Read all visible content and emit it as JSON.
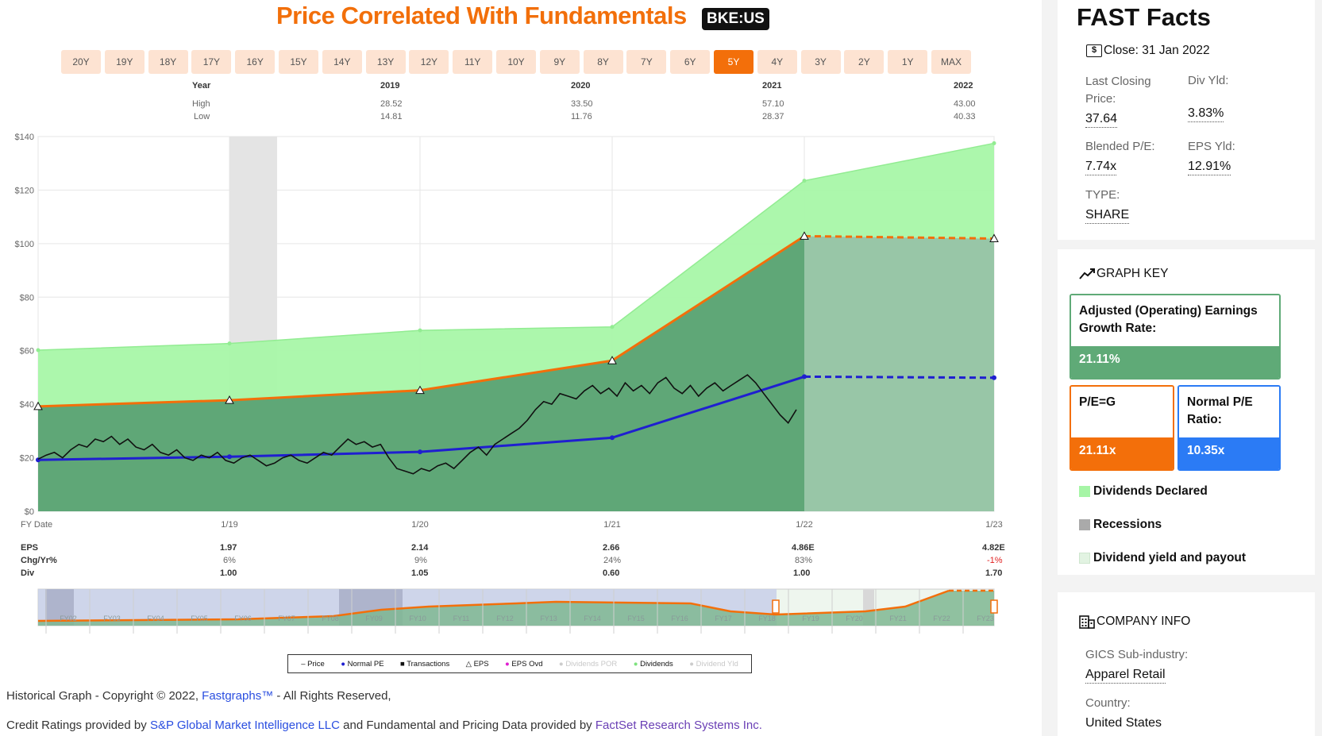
{
  "header": {
    "title": "Price Correlated With Fundamentals",
    "ticker": "BKE:US"
  },
  "ranges": [
    {
      "label": "20Y",
      "active": false
    },
    {
      "label": "19Y",
      "active": false
    },
    {
      "label": "18Y",
      "active": false
    },
    {
      "label": "17Y",
      "active": false
    },
    {
      "label": "16Y",
      "active": false
    },
    {
      "label": "15Y",
      "active": false
    },
    {
      "label": "14Y",
      "active": false
    },
    {
      "label": "13Y",
      "active": false
    },
    {
      "label": "12Y",
      "active": false
    },
    {
      "label": "11Y",
      "active": false
    },
    {
      "label": "10Y",
      "active": false
    },
    {
      "label": "9Y",
      "active": false
    },
    {
      "label": "8Y",
      "active": false
    },
    {
      "label": "7Y",
      "active": false
    },
    {
      "label": "6Y",
      "active": false
    },
    {
      "label": "5Y",
      "active": true
    },
    {
      "label": "4Y",
      "active": false
    },
    {
      "label": "3Y",
      "active": false
    },
    {
      "label": "2Y",
      "active": false
    },
    {
      "label": "1Y",
      "active": false
    },
    {
      "label": "MAX",
      "active": false
    }
  ],
  "year_table": {
    "year_label": "Year",
    "high_label": "High",
    "low_label": "Low",
    "columns": [
      {
        "year": "2019",
        "high": "28.52",
        "low": "14.81"
      },
      {
        "year": "2020",
        "high": "33.50",
        "low": "11.76"
      },
      {
        "year": "2021",
        "high": "57.10",
        "low": "28.37"
      },
      {
        "year": "2022",
        "high": "43.00",
        "low": "40.33"
      }
    ]
  },
  "chart_data": {
    "type": "area",
    "y_ticks": [
      "$0",
      "$20",
      "$40",
      "$60",
      "$80",
      "$100",
      "$120",
      "$140"
    ],
    "ylim": [
      0,
      140
    ],
    "x_labels": [
      "1/19",
      "1/20",
      "1/21",
      "1/22",
      "1/23"
    ],
    "x_axis_label": "FY Date",
    "x": [
      0,
      1,
      2,
      3,
      4,
      5
    ],
    "series": [
      {
        "name": "Dividends",
        "values": [
          60.2,
          62.7,
          67.6,
          68.9,
          123.5,
          137.5
        ]
      },
      {
        "name": "EPS",
        "values": [
          39.2,
          41.5,
          45.2,
          56.3,
          102.8,
          101.9
        ]
      },
      {
        "name": "Normal PE",
        "values": [
          19.2,
          20.4,
          22.2,
          27.5,
          50.3,
          49.9
        ]
      }
    ],
    "recession": {
      "from": 1.0,
      "to": 1.25
    },
    "estimate_start": 4,
    "price": [
      19.5,
      21,
      22,
      20,
      23,
      25,
      24,
      27,
      26,
      28,
      25,
      27,
      24,
      23,
      25,
      22,
      21,
      23,
      20,
      19,
      21,
      20,
      22,
      19,
      18,
      20,
      21,
      19,
      17,
      18,
      20,
      21,
      19,
      18,
      20,
      22,
      21,
      24,
      27,
      25,
      26,
      24,
      25,
      20,
      16,
      15,
      14,
      16,
      15,
      17,
      18,
      16,
      19,
      22,
      24,
      21,
      25,
      27,
      29,
      31,
      34,
      38,
      41,
      40,
      44,
      43,
      42,
      45,
      47,
      44,
      46,
      43,
      48,
      45,
      47,
      44,
      48,
      50,
      46,
      44,
      47,
      43,
      46,
      48,
      45,
      47,
      49,
      51,
      48,
      44,
      40,
      36,
      33,
      38
    ]
  },
  "bottom_table": {
    "eps_label": "EPS",
    "chg_label": "Chg/Yr%",
    "div_label": "Div",
    "columns": [
      {
        "eps": "1.97",
        "chg": "6%",
        "div": "1.00",
        "neg": false
      },
      {
        "eps": "2.14",
        "chg": "9%",
        "div": "1.05",
        "neg": false
      },
      {
        "eps": "2.66",
        "chg": "24%",
        "div": "0.60",
        "neg": false
      },
      {
        "eps": "4.86E",
        "chg": "83%",
        "div": "1.00",
        "neg": false
      },
      {
        "eps": "4.82E",
        "chg": "-1%",
        "div": "1.70",
        "neg": true
      }
    ]
  },
  "mini_labels": [
    "FY02",
    "FY03",
    "FY04",
    "FY05",
    "FY06",
    "FY07",
    "FY08",
    "FY09",
    "FY10",
    "FY11",
    "FY12",
    "FY13",
    "FY14",
    "FY15",
    "FY16",
    "FY17",
    "FY18",
    "FY19",
    "FY20",
    "FY21",
    "FY22",
    "FY23"
  ],
  "legend": [
    {
      "label": "Price",
      "mark": "–",
      "color": "#111"
    },
    {
      "label": "Normal PE",
      "mark": "●",
      "color": "#1f1fd0"
    },
    {
      "label": "Transactions",
      "mark": "■",
      "color": "#111"
    },
    {
      "label": "EPS",
      "mark": "△",
      "color": "#111"
    },
    {
      "label": "EPS Ovd",
      "mark": "●",
      "color": "#e020d0"
    },
    {
      "label": "Dividends POR",
      "mark": "●",
      "color": "#cccccc",
      "muted": true
    },
    {
      "label": "Dividends",
      "mark": "●",
      "color": "#7ee27e"
    },
    {
      "label": "Dividend Yld",
      "mark": "●",
      "color": "#cccccc",
      "muted": true
    }
  ],
  "footer": {
    "line1_a": "Historical Graph - Copyright © 2022, ",
    "line1_link": "Fastgraphs™",
    "line1_b": " - All Rights Reserved,",
    "line2_a": "Credit Ratings provided by ",
    "line2_link1": "S&P Global Market Intelligence LLC",
    "line2_b": " and Fundamental and Pricing Data provided by ",
    "line2_link2": "FactSet Research Systems Inc."
  },
  "facts": {
    "title": "FAST Facts",
    "close": "Close: 31 Jan 2022",
    "last_close_label": "Last Closing Price:",
    "last_close": "37.64",
    "div_yld_label": "Div Yld:",
    "div_yld": "3.83%",
    "pe_label": "Blended P/E:",
    "pe": "7.74x",
    "eps_yld_label": "EPS Yld:",
    "eps_yld": "12.91%",
    "type_label": "TYPE:",
    "type": "SHARE"
  },
  "graph_key": {
    "title": "GRAPH KEY",
    "growth_label": "Adjusted (Operating) Earnings Growth Rate:",
    "growth": "21.11%",
    "peg_label": "P/E=G",
    "peg": "21.11x",
    "npe_label": "Normal P/E Ratio:",
    "npe": "10.35x",
    "div_declared": "Dividends Declared",
    "recessions": "Recessions",
    "div_yield_payout": "Dividend yield and payout",
    "colors": {
      "growth": "#5faa77",
      "peg": "#f36f0a",
      "npe": "#2b7bf5"
    }
  },
  "company": {
    "title": "COMPANY INFO",
    "gics_label": "GICS Sub-industry:",
    "gics": "Apparel Retail",
    "country_label": "Country:",
    "country": "United States"
  }
}
